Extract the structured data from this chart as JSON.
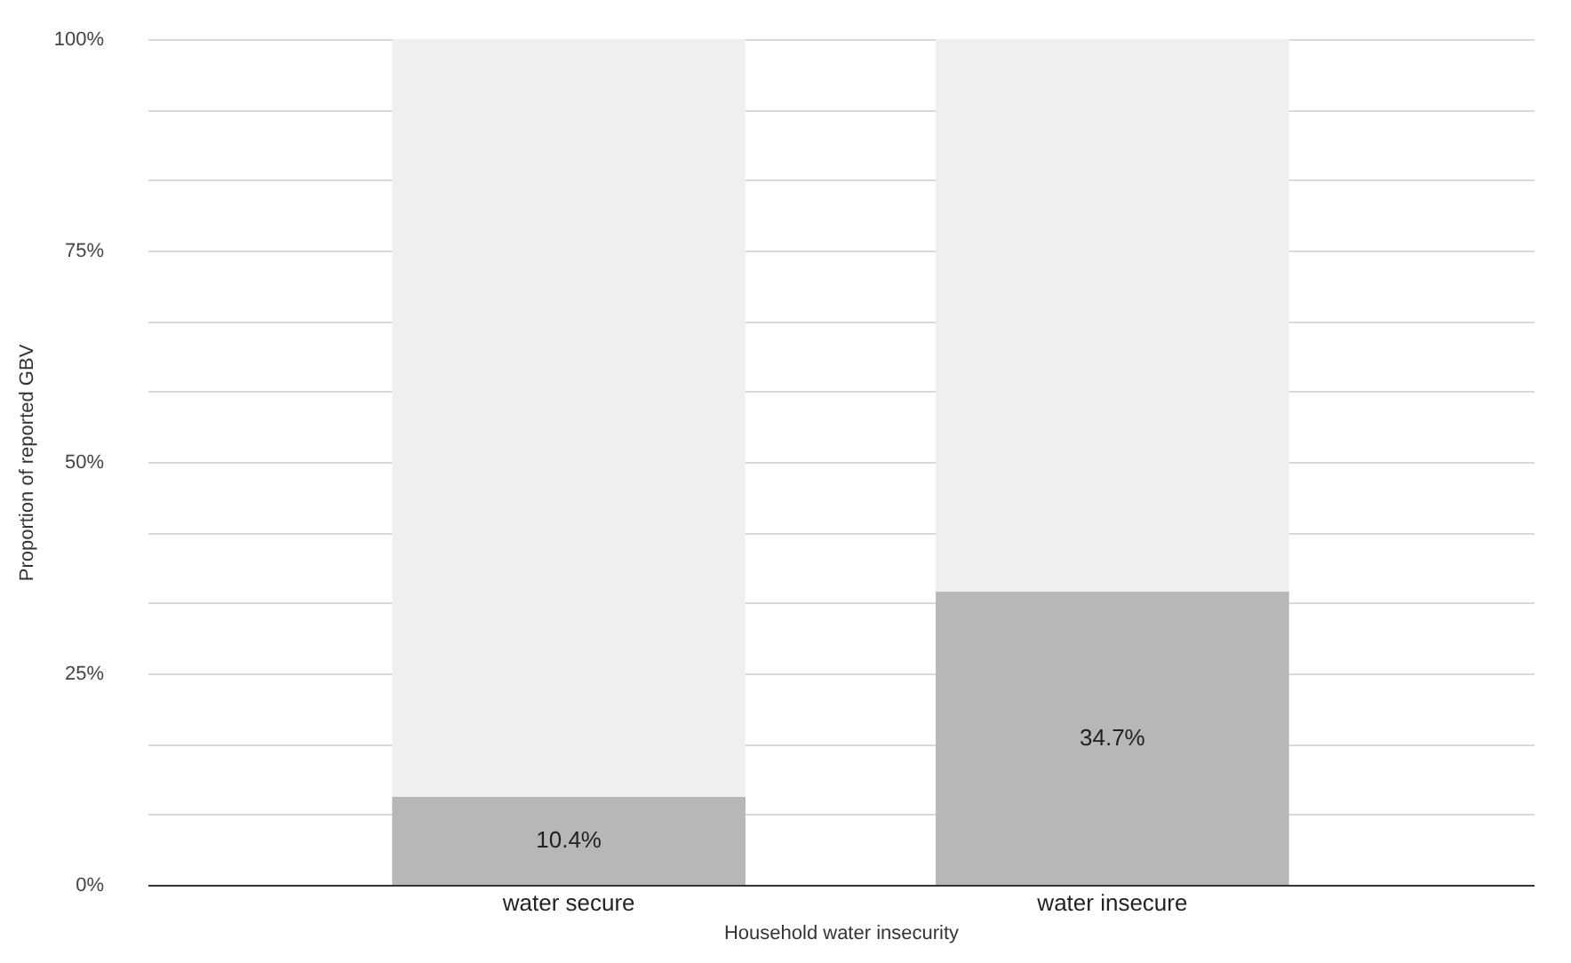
{
  "chart_data": {
    "type": "bar",
    "xlabel": "Household water insecurity",
    "ylabel": "Proportion of reported GBV",
    "categories": [
      "water secure",
      "water insecure"
    ],
    "stacked": true,
    "series": [
      {
        "color": "#b7b7b7",
        "values": [
          10.4,
          34.7
        ],
        "value_labels": [
          "10.4%",
          "34.7%"
        ]
      },
      {
        "color": "#efefef",
        "values": [
          89.6,
          65.3
        ]
      }
    ],
    "ylim": [
      0,
      100
    ],
    "yticks": [
      {
        "value": 0,
        "label": "0%"
      },
      {
        "value": 8.33,
        "label": null
      },
      {
        "value": 16.67,
        "label": null
      },
      {
        "value": 25,
        "label": "25%"
      },
      {
        "value": 33.33,
        "label": null
      },
      {
        "value": 41.67,
        "label": null
      },
      {
        "value": 50,
        "label": "50%"
      },
      {
        "value": 58.33,
        "label": null
      },
      {
        "value": 66.67,
        "label": null
      },
      {
        "value": 75,
        "label": "75%"
      },
      {
        "value": 83.33,
        "label": null
      },
      {
        "value": 91.67,
        "label": null
      },
      {
        "value": 100,
        "label": "100%"
      }
    ],
    "grid": "y",
    "legend": false
  }
}
